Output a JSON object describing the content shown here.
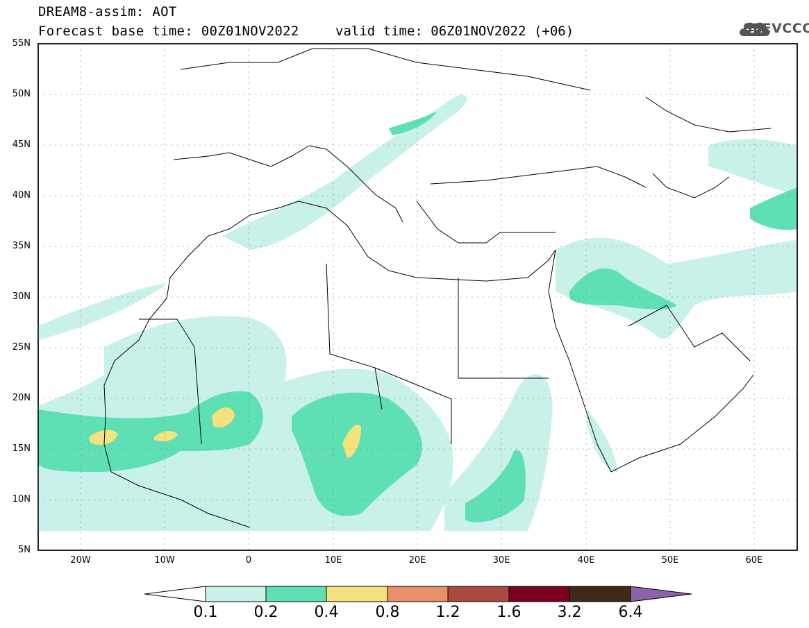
{
  "header": {
    "title": "DREAM8-assim: AOT",
    "base_time": "Forecast base time: 00Z01NOV2022",
    "valid_time": "valid time: 06Z01NOV2022 (+06)"
  },
  "logo": {
    "text": "SEEVCCC",
    "icon": "cloud-icon"
  },
  "map": {
    "lat_labels": [
      "55N",
      "50N",
      "45N",
      "40N",
      "35N",
      "30N",
      "25N",
      "20N",
      "15N",
      "10N",
      "5N"
    ],
    "lon_labels": [
      "20W",
      "10W",
      "0",
      "10E",
      "20E",
      "30E",
      "40E",
      "50E",
      "60E"
    ],
    "grid": true,
    "land_color": "#ffffff",
    "border_color": "#000000"
  },
  "colorbar": {
    "labels": [
      "0.1",
      "0.2",
      "0.4",
      "0.8",
      "1.2",
      "1.6",
      "3.2",
      "6.4"
    ],
    "colors": [
      "#c8f1ea",
      "#5fe0b4",
      "#f4e27c",
      "#e8906a",
      "#a9493f",
      "#7e0020",
      "#3d2a1a",
      "#8b63a6"
    ],
    "lower_extend_color": "#ffffff"
  }
}
